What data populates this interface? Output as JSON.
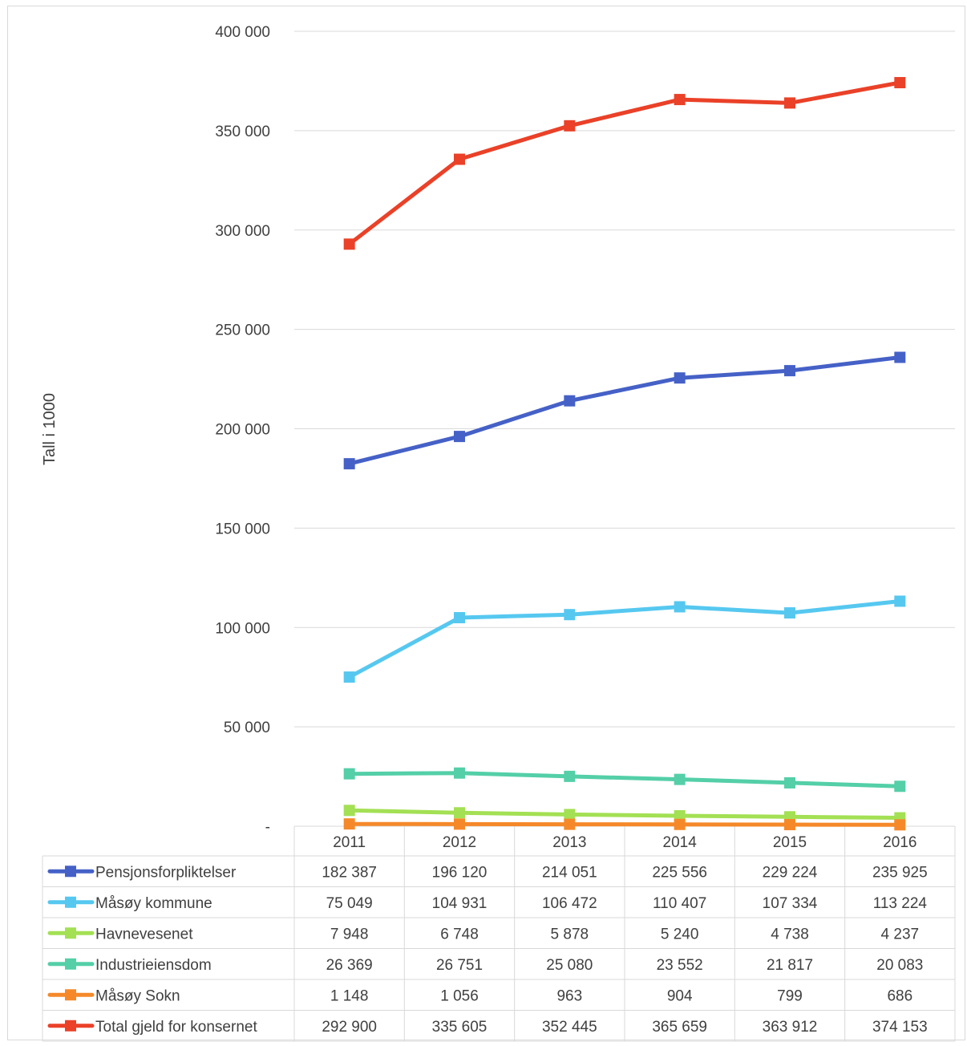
{
  "chart_data": {
    "type": "line",
    "ylabel": "Tall i 1000",
    "ylim": [
      0,
      400000
    ],
    "yticks": [
      {
        "value": 0,
        "label": "-"
      },
      {
        "value": 50000,
        "label": "50 000"
      },
      {
        "value": 100000,
        "label": "100 000"
      },
      {
        "value": 150000,
        "label": "150 000"
      },
      {
        "value": 200000,
        "label": "200 000"
      },
      {
        "value": 250000,
        "label": "250 000"
      },
      {
        "value": 300000,
        "label": "300 000"
      },
      {
        "value": 350000,
        "label": "350 000"
      },
      {
        "value": 400000,
        "label": "400 000"
      }
    ],
    "categories": [
      "2011",
      "2012",
      "2013",
      "2014",
      "2015",
      "2016"
    ],
    "grid": true,
    "legend": "data-table-below",
    "series": [
      {
        "name": "Pensjonsforpliktelser",
        "color": "#4561c7",
        "values": [
          182387,
          196120,
          214051,
          225556,
          229224,
          235925
        ],
        "labels": [
          "182 387",
          "196 120",
          "214 051",
          "225 556",
          "229 224",
          "235 925"
        ]
      },
      {
        "name": "Måsøy kommune",
        "color": "#56c8f0",
        "values": [
          75049,
          104931,
          106472,
          110407,
          107334,
          113224
        ],
        "labels": [
          "75 049",
          "104 931",
          "106 472",
          "110 407",
          "107 334",
          "113 224"
        ]
      },
      {
        "name": "Havnevesenet",
        "color": "#a3e054",
        "values": [
          7948,
          6748,
          5878,
          5240,
          4738,
          4237
        ],
        "labels": [
          "7 948",
          "6 748",
          "5 878",
          "5 240",
          "4 738",
          "4 237"
        ]
      },
      {
        "name": "Industrieiensdom",
        "color": "#54cfa8",
        "values": [
          26369,
          26751,
          25080,
          23552,
          21817,
          20083
        ],
        "labels": [
          "26 369",
          "26 751",
          "25 080",
          "23 552",
          "21 817",
          "20 083"
        ]
      },
      {
        "name": "Måsøy Sokn",
        "color": "#f5892a",
        "values": [
          1148,
          1056,
          963,
          904,
          799,
          686
        ],
        "labels": [
          "1 148",
          "1 056",
          "963",
          "904",
          "799",
          "686"
        ]
      },
      {
        "name": "Total gjeld for konsernet",
        "color": "#ea4128",
        "values": [
          292900,
          335605,
          352445,
          365659,
          363912,
          374153
        ],
        "labels": [
          "292 900",
          "335 605",
          "352 445",
          "365 659",
          "363 912",
          "374 153"
        ]
      }
    ]
  }
}
